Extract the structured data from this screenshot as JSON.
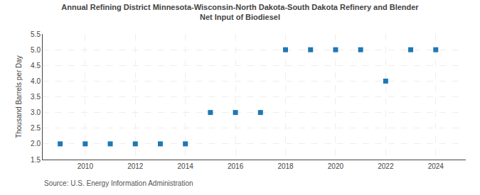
{
  "chart_data": {
    "type": "scatter",
    "title": "Annual Refining District Minnesota-Wisconsin-North Dakota-South Dakota Refinery and Blender",
    "subtitle": "Net Input of Biodiesel",
    "y_label": "Thousand Barrels per Day",
    "annotations": [
      "Source: U.S. Energy Information Administration"
    ],
    "x": [
      2009,
      2010,
      2011,
      2012,
      2013,
      2014,
      2015,
      2016,
      2017,
      2018,
      2019,
      2020,
      2021,
      2022,
      2023,
      2024
    ],
    "values": [
      2.0,
      2.0,
      2.0,
      2.0,
      2.0,
      2.0,
      3.0,
      3.0,
      3.0,
      5.0,
      5.0,
      5.0,
      5.0,
      4.0,
      5.0,
      5.0
    ],
    "marker": "square",
    "xlim": [
      2008.3,
      2025.2
    ],
    "xticks": [
      2010,
      2012,
      2014,
      2016,
      2018,
      2020,
      2022,
      2024
    ],
    "ylim": [
      1.5,
      5.5
    ],
    "yticks": [
      1.5,
      {
        "value": 2.0,
        "label": "2.0"
      },
      2.5,
      {
        "value": 3.0,
        "label": "3.0"
      },
      3.5,
      {
        "value": 4.0,
        "label": "4.0"
      },
      4.5,
      {
        "value": 5.0,
        "label": "5.0"
      },
      5.5
    ],
    "grid": true
  }
}
